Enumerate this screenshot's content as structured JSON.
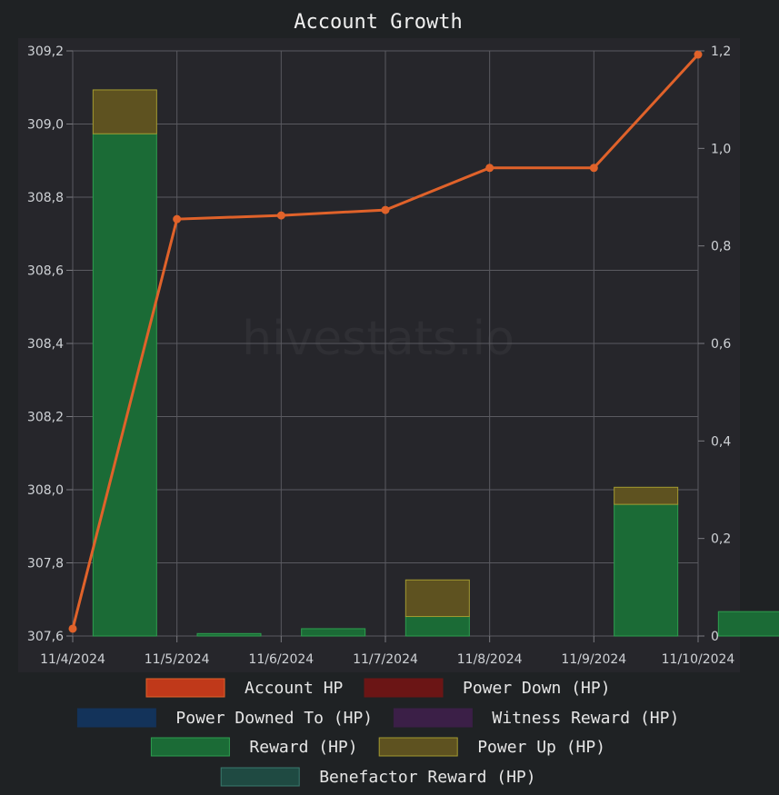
{
  "chart_data": {
    "type": "bar",
    "title": "Account Growth",
    "watermark": "hivestats.io",
    "categories": [
      "11/4/2024",
      "11/5/2024",
      "11/6/2024",
      "11/7/2024",
      "11/8/2024",
      "11/9/2024",
      "11/10/2024"
    ],
    "y_left": {
      "min": 307.6,
      "max": 309.2,
      "ticks": [
        "307,6",
        "307,8",
        "308,0",
        "308,2",
        "308,4",
        "308,6",
        "308,8",
        "309,0",
        "309,2"
      ]
    },
    "y_right": {
      "min": 0,
      "max": 1.2,
      "ticks": [
        "0",
        "0,2",
        "0,4",
        "0,6",
        "0,8",
        "1,0",
        "1,2"
      ]
    },
    "grid": true,
    "legend_position": "bottom",
    "series": [
      {
        "name": "Account HP",
        "type": "line",
        "axis": "left",
        "color": "#e0622a",
        "swatch": "#c0391a",
        "values": [
          307.62,
          308.74,
          308.75,
          308.765,
          308.88,
          308.88,
          309.19
        ]
      },
      {
        "name": "Power Down (HP)",
        "type": "bar",
        "axis": "right",
        "color": "#6b1515",
        "values": [
          0,
          0,
          0,
          0,
          0,
          0,
          0
        ]
      },
      {
        "name": "Power Downed To (HP)",
        "type": "bar",
        "axis": "right",
        "color": "#13335a",
        "values": [
          0,
          0,
          0,
          0,
          0,
          0,
          0
        ]
      },
      {
        "name": "Witness Reward (HP)",
        "type": "bar",
        "axis": "right",
        "color": "#3b1f47",
        "values": [
          0,
          0,
          0,
          0,
          0,
          0,
          0
        ]
      },
      {
        "name": "Reward (HP)",
        "type": "bar",
        "axis": "right",
        "stack": "a",
        "color": "#1b6b36",
        "border": "#2e9e4f",
        "values": [
          1.03,
          0.005,
          0.015,
          0.04,
          0,
          0.27,
          0.05
        ]
      },
      {
        "name": "Power Up (HP)",
        "type": "bar",
        "axis": "right",
        "stack": "a",
        "color": "#5e5220",
        "border": "#a39a30",
        "values": [
          0.09,
          0,
          0,
          0.075,
          0,
          0.035,
          0
        ]
      },
      {
        "name": "Benefactor Reward (HP)",
        "type": "bar",
        "axis": "right",
        "stack": "a",
        "color": "#1f4a42",
        "border": "#3a7a6e",
        "values": [
          0,
          0,
          0,
          0,
          0,
          0,
          0
        ]
      }
    ]
  }
}
